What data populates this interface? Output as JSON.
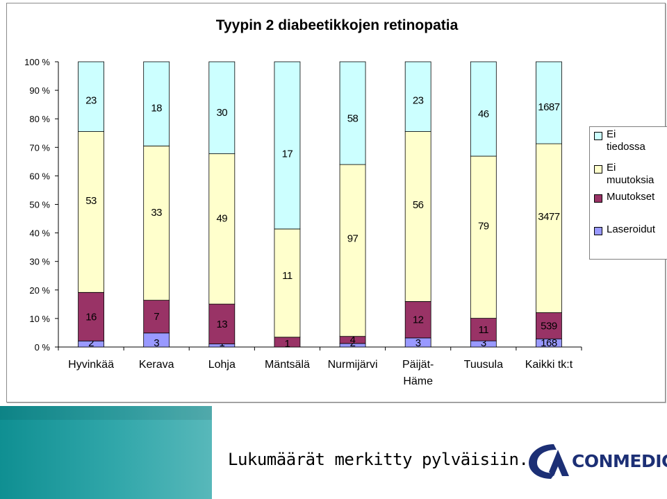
{
  "chart_data": {
    "type": "bar",
    "stacked": "percent",
    "title": "Tyypin 2 diabeetikkojen retinopatia",
    "categories": [
      "Hyvinkää",
      "Kerava",
      "Lohja",
      "Mäntsälä",
      "Nurmijärvi",
      "Päijät-Häme",
      "Tuusula",
      "Kaikki tk:t"
    ],
    "category_lines": [
      [
        "Hyvinkää"
      ],
      [
        "Kerava"
      ],
      [
        "Lohja"
      ],
      [
        "Mäntsälä"
      ],
      [
        "Nurmijärvi"
      ],
      [
        "Päijät-",
        "Häme"
      ],
      [
        "Tuusula"
      ],
      [
        "Kaikki tk:t"
      ]
    ],
    "series": [
      {
        "name": "Laseroidut",
        "color": "#9999ff",
        "values": [
          2,
          3,
          1,
          0,
          2,
          3,
          3,
          168
        ],
        "labels": [
          "2",
          "3",
          "1",
          "",
          "2",
          "3",
          "3",
          "168"
        ]
      },
      {
        "name": "Muutokset",
        "color": "#993366",
        "values": [
          16,
          7,
          13,
          1,
          4,
          12,
          11,
          539
        ],
        "labels": [
          "16",
          "7",
          "13",
          "1",
          "4",
          "12",
          "11",
          "539"
        ]
      },
      {
        "name": "Ei muutoksia",
        "color": "#ffffcc",
        "values": [
          53,
          33,
          49,
          11,
          97,
          56,
          79,
          3477
        ],
        "labels": [
          "53",
          "33",
          "49",
          "11",
          "97",
          "56",
          "79",
          "3477"
        ]
      },
      {
        "name": "Ei tiedossa",
        "color": "#ccffff",
        "values": [
          23,
          18,
          30,
          17,
          58,
          23,
          46,
          1687
        ],
        "labels": [
          "23",
          "18",
          "30",
          "17",
          "58",
          "23",
          "46",
          "1687"
        ]
      }
    ],
    "y_ticks": [
      "0 %",
      "10 %",
      "20 %",
      "30 %",
      "40 %",
      "50 %",
      "60 %",
      "70 %",
      "80 %",
      "90 %",
      "100 %"
    ],
    "ylim": [
      0,
      100
    ],
    "legend_position": "right",
    "legend": [
      {
        "name_lines": [
          "Ei",
          "tiedossa"
        ],
        "color": "#ccffff"
      },
      {
        "name_lines": [
          "Ei",
          "muutoksia"
        ],
        "color": "#ffffcc"
      },
      {
        "name_lines": [
          "Muutokset"
        ],
        "color": "#993366"
      },
      {
        "name_lines": [
          "Laseroidut"
        ],
        "color": "#9999ff"
      }
    ]
  },
  "footer": {
    "note": "Lukumäärät merkitty pylväisiin."
  },
  "logo": {
    "text": "CONMEDIC",
    "color": "#1c2f75"
  }
}
